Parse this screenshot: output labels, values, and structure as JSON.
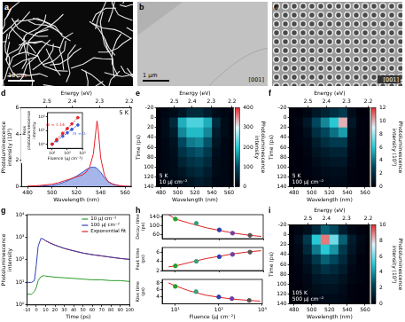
{
  "images": [
    {
      "panel": "a",
      "scale_bar": "10 μm"
    },
    {
      "panel": "b",
      "scale_bar": "1 μm",
      "direction": "[001]"
    },
    {
      "panel": "c",
      "direction": "[001]"
    }
  ],
  "chart_data": [
    {
      "panel": "d",
      "type": "line",
      "xlabel": "Wavelength (nm)",
      "x2label": "Energy (eV)",
      "ylabel": "Photoluminescence intensity (10³)",
      "xlim": [
        475,
        565
      ],
      "xticks": [
        480,
        500,
        520,
        540,
        560
      ],
      "x2lim": [
        475,
        565
      ],
      "x2ticks": [
        {
          "value": 495.9,
          "label": "2.5"
        },
        {
          "value": 516.6,
          "label": "2.4"
        },
        {
          "value": 539.1,
          "label": "2.3"
        },
        {
          "value": 563.6,
          "label": "2.2"
        }
      ],
      "ylim": [
        0,
        6
      ],
      "yticks": [
        0,
        2,
        4,
        6
      ],
      "annotations": [
        "5 K"
      ],
      "x": [
        480,
        490,
        500,
        505,
        510,
        515,
        520,
        525,
        528,
        531,
        534,
        536,
        537,
        538,
        540,
        543,
        546,
        550,
        555,
        560,
        565
      ],
      "series": [
        {
          "color": "#e8202a",
          "values": [
            0.05,
            0.1,
            0.2,
            0.3,
            0.45,
            0.6,
            0.75,
            0.9,
            1.1,
            1.5,
            2.5,
            4.2,
            5,
            4.3,
            2.2,
            0.9,
            0.4,
            0.2,
            0.1,
            0.05,
            0.03
          ]
        },
        {
          "color": "#3a5bd0",
          "type": "area",
          "values": [
            0.02,
            0.05,
            0.1,
            0.2,
            0.35,
            0.55,
            0.8,
            1.1,
            1.3,
            1.45,
            1.5,
            1.45,
            1.4,
            1.3,
            1.1,
            0.7,
            0.4,
            0.2,
            0.08,
            0.03,
            0.02
          ]
        }
      ],
      "inset": {
        "type": "line",
        "log": true,
        "xlabel": "Fluence (μJ cm⁻²)",
        "ylabel": "Peak photoluminescence intensity",
        "xlim": [
          5,
          1000
        ],
        "xticks": [
          {
            "value": 10,
            "label": "10¹"
          },
          {
            "value": 100,
            "label": "10²"
          },
          {
            "value": 1000,
            "label": "10³"
          }
        ],
        "ylim": [
          0.5,
          200
        ],
        "yticks": [
          {
            "value": 1,
            "label": "10⁰"
          },
          {
            "value": 10,
            "label": "10¹"
          },
          {
            "value": 100,
            "label": "10²"
          }
        ],
        "x": [
          10,
          20,
          50,
          100,
          200,
          500
        ],
        "series": [
          {
            "name": "m = 1.14",
            "color": "#e8202a",
            "marker": "circle",
            "line_style": "dashed",
            "values": [
              1,
              2.2,
              6.2,
              13.8,
              30.5,
              87
            ]
          },
          {
            "name": "m = 0.83",
            "color": "#3a5bd0",
            "marker": "circle",
            "line_style": "dashed",
            "values": [
              1,
              1.78,
              3.8,
              6.8,
              12,
              25
            ]
          }
        ]
      }
    },
    {
      "panel": "e",
      "type": "heatmap",
      "xlabel": "Wavelength (nm)",
      "x2label": "Energy (eV)",
      "ylabel": "Time (ps)",
      "xlim": [
        475,
        565
      ],
      "xticks": [
        480,
        500,
        520,
        540,
        560
      ],
      "x2lim": [
        475,
        565
      ],
      "x2ticks": [
        {
          "value": 495.9,
          "label": "2.5"
        },
        {
          "value": 516.6,
          "label": "2.4"
        },
        {
          "value": 539.1,
          "label": "2.3"
        },
        {
          "value": 563.6,
          "label": "2.2"
        }
      ],
      "ylim": [
        140,
        -20
      ],
      "yticks": [
        -20,
        0,
        20,
        40,
        60,
        80,
        100,
        120,
        140
      ],
      "annotations": [
        "5 K",
        "10 μJ cm⁻²"
      ],
      "cells": {
        "x_edges": [
          480,
          490,
          500,
          510,
          520,
          530,
          540,
          550,
          560
        ],
        "y_edges": [
          -20,
          0,
          20,
          40,
          60,
          80,
          100,
          120,
          140
        ],
        "values": [
          [
            10,
            15,
            30,
            60,
            60,
            40,
            15,
            10
          ],
          [
            15,
            60,
            180,
            220,
            220,
            180,
            60,
            15
          ],
          [
            15,
            40,
            150,
            190,
            190,
            150,
            40,
            15
          ],
          [
            10,
            25,
            100,
            140,
            150,
            110,
            30,
            10
          ],
          [
            10,
            20,
            70,
            100,
            110,
            80,
            20,
            10
          ],
          [
            10,
            15,
            50,
            70,
            80,
            60,
            15,
            10
          ],
          [
            10,
            15,
            30,
            50,
            60,
            40,
            15,
            10
          ],
          [
            10,
            10,
            20,
            30,
            40,
            30,
            10,
            10
          ]
        ]
      },
      "colorbar": {
        "label": "Photoluminescence intensity",
        "lim": [
          0,
          400
        ],
        "ticks": [
          0,
          100,
          200,
          300,
          400
        ]
      }
    },
    {
      "panel": "f",
      "type": "heatmap",
      "xlabel": "Wavelength (nm)",
      "x2label": "Energy (eV)",
      "ylabel": "Time (ps)",
      "xlim": [
        475,
        565
      ],
      "xticks": [
        480,
        500,
        520,
        540,
        560
      ],
      "x2lim": [
        475,
        565
      ],
      "x2ticks": [
        {
          "value": 495.9,
          "label": "2.5"
        },
        {
          "value": 516.6,
          "label": "2.4"
        },
        {
          "value": 539.1,
          "label": "2.3"
        },
        {
          "value": 563.6,
          "label": "2.2"
        }
      ],
      "ylim": [
        140,
        -20
      ],
      "yticks": [
        -20,
        0,
        20,
        40,
        60,
        80,
        100,
        120,
        140
      ],
      "annotations": [
        "5 K",
        "100 μJ cm⁻²"
      ],
      "cells": {
        "x_edges": [
          480,
          490,
          500,
          510,
          520,
          530,
          540,
          550,
          560
        ],
        "y_edges": [
          -20,
          0,
          20,
          40,
          60,
          80,
          100,
          120,
          140
        ],
        "values": [
          [
            0,
            0.3,
            1,
            1.5,
            2,
            2.5,
            0.5,
            0
          ],
          [
            0.2,
            1,
            3,
            4.5,
            6,
            10,
            1,
            0.1
          ],
          [
            0.1,
            0.6,
            2,
            3,
            4,
            5,
            0.6,
            0.1
          ],
          [
            0.1,
            0.3,
            1.2,
            2,
            2.5,
            2.5,
            0.4,
            0.1
          ],
          [
            0,
            0.2,
            0.8,
            1.2,
            1.5,
            1.5,
            0.3,
            0
          ],
          [
            0,
            0.1,
            0.5,
            0.8,
            1,
            1,
            0.2,
            0
          ],
          [
            0,
            0.1,
            0.3,
            0.5,
            0.6,
            0.6,
            0.1,
            0
          ],
          [
            0,
            0,
            0.2,
            0.3,
            0.4,
            0.4,
            0.1,
            0
          ]
        ]
      },
      "colorbar": {
        "label": "Photoluminescence intensity (10³)",
        "lim": [
          0,
          12
        ],
        "ticks": [
          0,
          2,
          4,
          6,
          8,
          10,
          12
        ]
      }
    },
    {
      "panel": "g",
      "type": "line",
      "log": "y",
      "legend": "upper right",
      "xlabel": "Time (ps)",
      "ylabel": "Photoluminescence intensity",
      "xlim": [
        -10,
        100
      ],
      "xticks": [
        -10,
        0,
        10,
        20,
        30,
        40,
        50,
        60,
        70,
        80,
        90,
        100
      ],
      "ylim": [
        1,
        10000
      ],
      "yticks": [
        {
          "value": 1,
          "label": "10⁰"
        },
        {
          "value": 10,
          "label": "10¹"
        },
        {
          "value": 100,
          "label": "10²"
        },
        {
          "value": 1000,
          "label": "10³"
        },
        {
          "value": 10000,
          "label": "10⁴"
        }
      ],
      "x": [
        -10,
        -5,
        -2,
        0,
        2,
        5,
        8,
        10,
        15,
        20,
        30,
        40,
        50,
        60,
        70,
        80,
        90,
        100
      ],
      "series": [
        {
          "name": "10 μJ cm⁻²",
          "color": "#2a9d2a",
          "values": [
            3,
            3,
            4,
            6,
            12,
            18,
            20,
            19,
            18,
            17,
            16,
            15,
            14,
            13,
            13,
            12,
            12,
            11
          ]
        },
        {
          "name": "100 μJ cm⁻²",
          "color": "#3040b0",
          "values": [
            10,
            10,
            12,
            60,
            400,
            900,
            800,
            700,
            550,
            450,
            320,
            250,
            200,
            170,
            150,
            130,
            115,
            105
          ]
        },
        {
          "name": "Exponential fit",
          "color": "#e02020",
          "values": [
            null,
            null,
            null,
            null,
            null,
            null,
            800,
            700,
            550,
            450,
            320,
            250,
            200,
            168,
            148,
            130,
            115,
            104
          ]
        }
      ]
    },
    {
      "panel": "h",
      "type": "scatter",
      "log": "x",
      "xlabel": "Fluence (μJ cm⁻²)",
      "xlim": [
        5,
        1000
      ],
      "xticks": [
        {
          "value": 10,
          "label": "10¹"
        },
        {
          "value": 100,
          "label": "10²"
        },
        {
          "value": 1000,
          "label": "10³"
        }
      ],
      "subplots": [
        {
          "ylabel": "Decay time (ps)",
          "ylim": [
            40,
            150
          ],
          "yticks": [
            60,
            100,
            140
          ],
          "tick_labels": "y",
          "series": [
            {
              "type": "scatter",
              "x": [
                10,
                30,
                100,
                200,
                500
              ],
              "values": [
                130,
                110,
                80,
                65,
                55
              ],
              "colors": [
                "#2a9d2a",
                "#3a9d7a",
                "#3040b0",
                "#7040a0",
                "#555555"
              ]
            },
            {
              "type": "line",
              "color": "#e02020",
              "x": [
                7,
                10,
                20,
                50,
                100,
                200,
                500,
                900
              ],
              "values": [
                150,
                130,
                112,
                90,
                78,
                66,
                55,
                50
              ]
            }
          ]
        },
        {
          "ylabel": "Peak time (ps)",
          "ylim": [
            2,
            7
          ],
          "yticks": [
            2,
            4,
            6
          ],
          "tick_labels": "y",
          "series": [
            {
              "type": "scatter",
              "x": [
                10,
                30,
                100,
                200,
                500
              ],
              "values": [
                3,
                4,
                5,
                5.5,
                6
              ],
              "colors": [
                "#2a9d2a",
                "#3a9d7a",
                "#3040b0",
                "#7040a0",
                "#555555"
              ]
            },
            {
              "type": "line",
              "color": "#e02020",
              "x": [
                7,
                10,
                20,
                50,
                100,
                200,
                500,
                900
              ],
              "values": [
                2.8,
                3,
                3.7,
                4.6,
                5.1,
                5.6,
                6.1,
                6.3
              ]
            }
          ]
        },
        {
          "ylabel": "Rise time (ps)",
          "ylim": [
            2,
            9
          ],
          "yticks": [
            4,
            6,
            8
          ],
          "series": [
            {
              "type": "scatter",
              "x": [
                10,
                30,
                100,
                200,
                500
              ],
              "values": [
                7,
                5.5,
                4,
                3.5,
                3
              ],
              "colors": [
                "#2a9d2a",
                "#3a9d7a",
                "#3040b0",
                "#7040a0",
                "#555555"
              ]
            },
            {
              "type": "line",
              "color": "#e02020",
              "x": [
                7,
                10,
                20,
                50,
                100,
                200,
                500,
                900
              ],
              "values": [
                8,
                7.2,
                5.8,
                4.5,
                3.9,
                3.4,
                3,
                2.8
              ]
            }
          ]
        }
      ]
    },
    {
      "panel": "i",
      "type": "heatmap",
      "xlabel": "Wavelength (nm)",
      "x2label": "Energy (eV)",
      "ylabel": "Time (ps)",
      "xlim": [
        475,
        565
      ],
      "xticks": [
        480,
        500,
        520,
        540,
        560
      ],
      "x2lim": [
        475,
        565
      ],
      "x2ticks": [
        {
          "value": 495.9,
          "label": "2.5"
        },
        {
          "value": 516.6,
          "label": "2.4"
        },
        {
          "value": 539.1,
          "label": "2.3"
        },
        {
          "value": 563.6,
          "label": "2.2"
        }
      ],
      "ylim": [
        140,
        -20
      ],
      "yticks": [
        -20,
        0,
        20,
        40,
        60,
        80,
        100,
        120,
        140
      ],
      "annotations": [
        "105 K",
        "500 μJ cm⁻²"
      ],
      "cells": {
        "x_edges": [
          480,
          490,
          500,
          510,
          520,
          530,
          540,
          550,
          560
        ],
        "y_edges": [
          -20,
          0,
          20,
          40,
          60,
          80,
          100,
          120,
          140
        ],
        "values": [
          [
            0.2,
            0.5,
            1.5,
            3,
            2.5,
            1,
            0.3,
            0.1
          ],
          [
            0.5,
            2,
            5,
            9,
            6,
            3,
            1,
            0.3
          ],
          [
            0.3,
            1.5,
            3.5,
            5,
            4,
            2,
            0.8,
            0.2
          ],
          [
            0.2,
            0.8,
            2,
            3,
            2.5,
            1.5,
            0.5,
            0.1
          ],
          [
            0.1,
            0.5,
            1.2,
            1.8,
            1.5,
            1,
            0.3,
            0.1
          ],
          [
            0.1,
            0.3,
            0.8,
            1,
            1,
            0.6,
            0.2,
            0.1
          ],
          [
            0,
            0.2,
            0.5,
            0.6,
            0.6,
            0.4,
            0.1,
            0
          ],
          [
            0,
            0.1,
            0.3,
            0.4,
            0.4,
            0.3,
            0.1,
            0
          ]
        ]
      },
      "colorbar": {
        "label": "Photoluminescence intensity (10³)",
        "lim": [
          0,
          10
        ],
        "ticks": [
          0,
          2,
          4,
          6,
          8,
          10
        ]
      }
    }
  ]
}
